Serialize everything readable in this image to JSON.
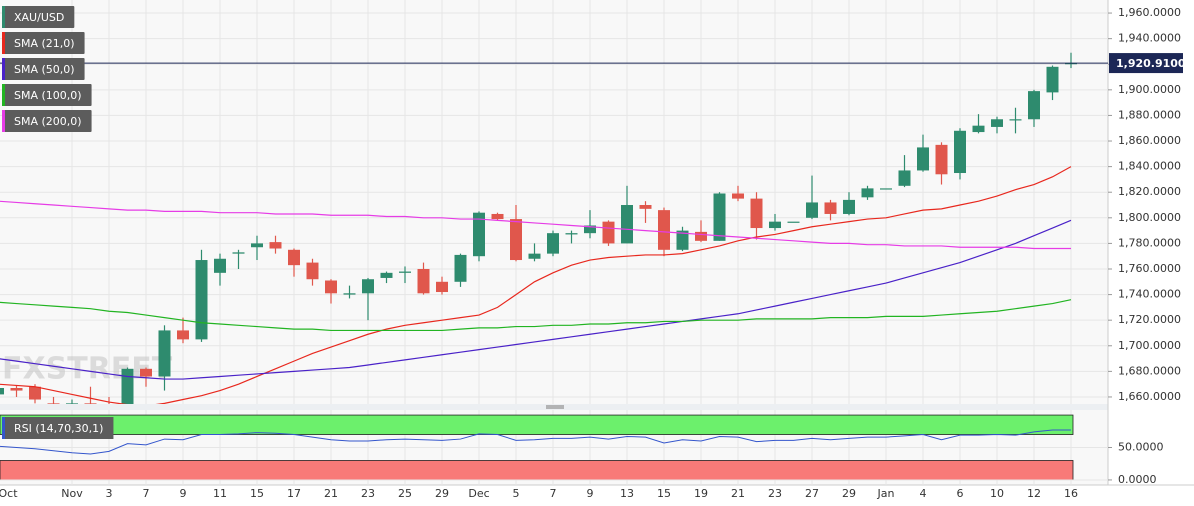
{
  "chart_data": [
    {
      "type": "candlestick",
      "watermark": "FXSTREET",
      "categories": [
        "Oct",
        null,
        null,
        null,
        "Nov",
        null,
        "3",
        null,
        "7",
        null,
        "9",
        null,
        "11",
        null,
        "15",
        null,
        "17",
        null,
        "21",
        null,
        "23",
        null,
        "25",
        null,
        "29",
        null,
        "Dec",
        null,
        "5",
        null,
        "7",
        null,
        "9",
        null,
        "13",
        null,
        "15",
        null,
        "19",
        null,
        "21",
        null,
        "23",
        null,
        "27",
        null,
        "29",
        null,
        "Jan",
        null,
        "4",
        null,
        "6",
        null,
        "10",
        null,
        "12",
        null,
        "16"
      ],
      "series": [
        {
          "name": "XAU/USD",
          "up_color": "#2e8b6e",
          "down_color": "#e0574c",
          "open": [
            1662,
            1667,
            1668,
            1655,
            1645,
            1655,
            1652,
            1652,
            1682,
            1676,
            1712,
            1705,
            1757,
            1772,
            1777,
            1781,
            1775,
            1765,
            1751,
            1740,
            1741,
            1753,
            1757,
            1760,
            1750,
            1750,
            1770,
            1803,
            1799,
            1768,
            1772,
            1787,
            1788,
            1797,
            1780,
            1810,
            1806,
            1775,
            1789,
            1782,
            1819,
            1815,
            1792,
            1797,
            1800,
            1812,
            1803,
            1816,
            1823,
            1825,
            1837,
            1857,
            1835,
            1867,
            1871,
            1877,
            1877,
            1898,
            1920
          ],
          "high": [
            1668,
            1669,
            1670,
            1660,
            1658,
            1668,
            1660,
            1683,
            1683,
            1716,
            1722,
            1775,
            1772,
            1775,
            1786,
            1786,
            1776,
            1768,
            1752,
            1747,
            1753,
            1758,
            1762,
            1765,
            1754,
            1772,
            1805,
            1804,
            1810,
            1780,
            1790,
            1790,
            1806,
            1798,
            1825,
            1813,
            1808,
            1793,
            1798,
            1820,
            1825,
            1820,
            1803,
            1797,
            1833,
            1814,
            1820,
            1825,
            1823,
            1849,
            1865,
            1859,
            1870,
            1881,
            1879,
            1886,
            1900,
            1919,
            1929
          ],
          "low": [
            1655,
            1660,
            1655,
            1640,
            1638,
            1650,
            1640,
            1650,
            1668,
            1665,
            1702,
            1703,
            1747,
            1760,
            1767,
            1772,
            1754,
            1747,
            1733,
            1737,
            1720,
            1749,
            1749,
            1740,
            1740,
            1746,
            1766,
            1798,
            1766,
            1766,
            1770,
            1780,
            1784,
            1778,
            1780,
            1796,
            1770,
            1774,
            1781,
            1782,
            1813,
            1783,
            1790,
            1797,
            1799,
            1798,
            1802,
            1814,
            1823,
            1824,
            1836,
            1826,
            1830,
            1866,
            1866,
            1866,
            1871,
            1892,
            1917
          ],
          "close": [
            1667,
            1665,
            1658,
            1645,
            1655,
            1652,
            1648,
            1682,
            1676,
            1712,
            1705,
            1767,
            1768,
            1773,
            1780,
            1776,
            1763,
            1752,
            1741,
            1741,
            1752,
            1757,
            1758,
            1741,
            1742,
            1771,
            1804,
            1799,
            1767,
            1772,
            1788,
            1788,
            1794,
            1780,
            1810,
            1807,
            1775,
            1790,
            1782,
            1819,
            1815,
            1792,
            1797,
            1797,
            1812,
            1803,
            1814,
            1823,
            1823,
            1837,
            1855,
            1834,
            1868,
            1872,
            1877,
            1877,
            1899,
            1918,
            1921
          ]
        },
        {
          "name": "SMA (21,0)",
          "color": "#e8281e",
          "values": [
            1670,
            1669,
            1668,
            1665,
            1662,
            1659,
            1656,
            1654,
            1653,
            1655,
            1658,
            1661,
            1665,
            1670,
            1676,
            1682,
            1688,
            1694,
            1699,
            1704,
            1709,
            1713,
            1716,
            1718,
            1720,
            1722,
            1724,
            1730,
            1740,
            1750,
            1757,
            1763,
            1767,
            1769,
            1770,
            1771,
            1771,
            1772,
            1775,
            1778,
            1782,
            1785,
            1787,
            1790,
            1793,
            1795,
            1797,
            1799,
            1800,
            1803,
            1806,
            1807,
            1810,
            1813,
            1817,
            1822,
            1826,
            1832,
            1840
          ]
        },
        {
          "name": "SMA (50,0)",
          "color": "#4a22c8",
          "values": [
            1690,
            1688,
            1686,
            1684,
            1682,
            1680,
            1678,
            1676,
            1675,
            1674,
            1674,
            1675,
            1676,
            1677,
            1678,
            1679,
            1680,
            1681,
            1682,
            1683,
            1685,
            1687,
            1689,
            1691,
            1693,
            1695,
            1697,
            1699,
            1701,
            1703,
            1705,
            1707,
            1709,
            1711,
            1713,
            1715,
            1717,
            1719,
            1721,
            1723,
            1725,
            1728,
            1731,
            1734,
            1737,
            1740,
            1743,
            1746,
            1749,
            1753,
            1757,
            1761,
            1765,
            1770,
            1775,
            1780,
            1786,
            1792,
            1798
          ]
        },
        {
          "name": "SMA (100,0)",
          "color": "#22b422",
          "values": [
            1734,
            1733,
            1732,
            1731,
            1730,
            1729,
            1727,
            1726,
            1724,
            1722,
            1720,
            1718,
            1717,
            1716,
            1715,
            1714,
            1713,
            1713,
            1712,
            1712,
            1712,
            1712,
            1712,
            1712,
            1712,
            1713,
            1714,
            1714,
            1715,
            1715,
            1716,
            1716,
            1717,
            1717,
            1718,
            1718,
            1719,
            1719,
            1720,
            1720,
            1720,
            1721,
            1721,
            1721,
            1721,
            1722,
            1722,
            1722,
            1723,
            1723,
            1723,
            1724,
            1725,
            1726,
            1727,
            1729,
            1731,
            1733,
            1736
          ]
        },
        {
          "name": "SMA (200,0)",
          "color": "#e63ce6",
          "values": [
            1813,
            1812,
            1811,
            1810,
            1809,
            1808,
            1807,
            1806,
            1806,
            1805,
            1805,
            1805,
            1804,
            1804,
            1804,
            1803,
            1803,
            1803,
            1802,
            1802,
            1802,
            1801,
            1801,
            1800,
            1800,
            1799,
            1799,
            1798,
            1797,
            1796,
            1795,
            1794,
            1793,
            1792,
            1791,
            1790,
            1789,
            1788,
            1787,
            1786,
            1785,
            1784,
            1783,
            1782,
            1781,
            1780,
            1780,
            1779,
            1779,
            1778,
            1778,
            1778,
            1777,
            1777,
            1777,
            1777,
            1776,
            1776,
            1776
          ]
        }
      ],
      "last_price": {
        "value": 1920.91,
        "label": "1,920.9100",
        "color": "#1c2756"
      },
      "ylim": [
        1654.5,
        1970.2
      ],
      "yticks": [
        {
          "value": 1660,
          "label": "1,660.0000"
        },
        {
          "value": 1680,
          "label": "1,680.0000"
        },
        {
          "value": 1700,
          "label": "1,700.0000"
        },
        {
          "value": 1720,
          "label": "1,720.0000"
        },
        {
          "value": 1740,
          "label": "1,740.0000"
        },
        {
          "value": 1760,
          "label": "1,760.0000"
        },
        {
          "value": 1780,
          "label": "1,780.0000"
        },
        {
          "value": 1800,
          "label": "1,800.0000"
        },
        {
          "value": 1820,
          "label": "1,820.0000"
        },
        {
          "value": 1840,
          "label": "1,840.0000"
        },
        {
          "value": 1860,
          "label": "1,860.0000"
        },
        {
          "value": 1880,
          "label": "1,880.0000"
        },
        {
          "value": 1900,
          "label": "1,900.0000"
        },
        {
          "value": 1920,
          "label": "1,920.0000"
        },
        {
          "value": 1940,
          "label": "1,940.0000"
        },
        {
          "value": 1960,
          "label": "1,960.0000"
        }
      ],
      "grid": true
    },
    {
      "type": "line",
      "title": "RSI (14,70,30,1)",
      "color": "#3456cc",
      "values": [
        52,
        50,
        48,
        45,
        42,
        40,
        44,
        56,
        54,
        63,
        62,
        70,
        70,
        71,
        73,
        72,
        70,
        66,
        62,
        60,
        60,
        62,
        63,
        62,
        61,
        63,
        71,
        70,
        61,
        62,
        64,
        64,
        66,
        63,
        67,
        66,
        57,
        62,
        60,
        67,
        66,
        59,
        61,
        61,
        64,
        62,
        64,
        66,
        66,
        68,
        70,
        62,
        69,
        69,
        70,
        69,
        74,
        77,
        77
      ],
      "bands": [
        {
          "from": 70,
          "to": 100,
          "color": "#6cf06c"
        },
        {
          "from": 0,
          "to": 30,
          "color": "#f87a78"
        }
      ],
      "ylim": [
        -7.8,
        107.8
      ],
      "yticks": [
        {
          "value": 50,
          "label": "50.0000"
        },
        {
          "value": 0,
          "label": "0.0000"
        }
      ]
    }
  ]
}
